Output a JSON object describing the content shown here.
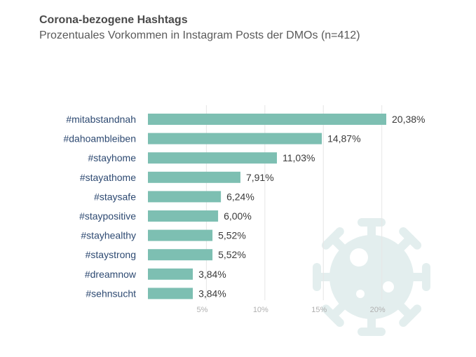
{
  "chart_data": {
    "type": "bar",
    "orientation": "horizontal",
    "title": "Corona-bezogene Hashtags",
    "subtitle": "Prozentuales Vorkommen in Instagram Posts der DMOs (n=412)",
    "categories": [
      "#mitabstandnah",
      "#dahoambleiben",
      "#stayhome",
      "#stayathome",
      "#staysafe",
      "#staypositive",
      "#stayhealthy",
      "#staystrong",
      "#dreamnow",
      "#sehnsucht"
    ],
    "values": [
      20.38,
      14.87,
      11.03,
      7.91,
      6.24,
      6.0,
      5.52,
      5.52,
      3.84,
      3.84
    ],
    "value_labels": [
      "20,38%",
      "14,87%",
      "11,03%",
      "7,91%",
      "6,24%",
      "6,00%",
      "5,52%",
      "5,52%",
      "3,84%",
      "3,84%"
    ],
    "x_ticks": [
      5,
      10,
      15,
      20
    ],
    "x_tick_labels": [
      "5%",
      "10%",
      "15%",
      "20%"
    ],
    "xlim": [
      0,
      20.38
    ],
    "grid": true,
    "bar_color": "#7dbfb2",
    "decoration_icon": "virus-icon",
    "decoration_color": "#e3eeee"
  }
}
